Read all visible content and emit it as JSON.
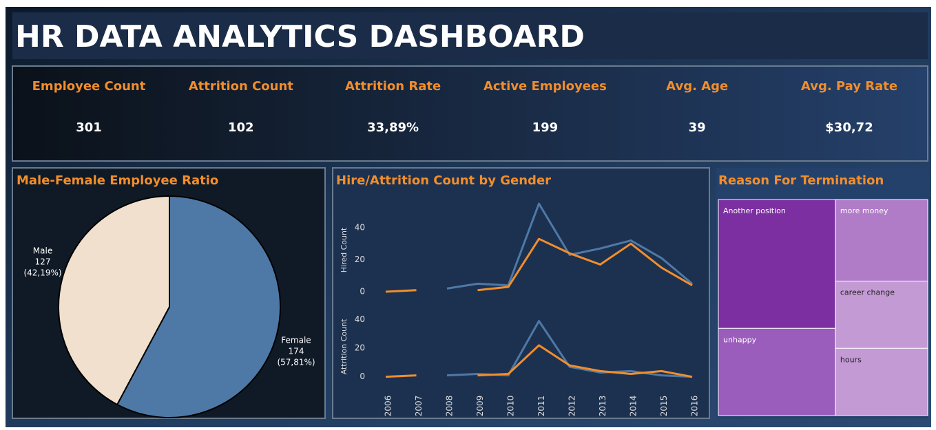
{
  "header": {
    "title": "HR DATA ANALYTICS DASHBOARD"
  },
  "kpis": [
    {
      "label": "Employee Count",
      "value": "301"
    },
    {
      "label": "Attrition Count",
      "value": "102"
    },
    {
      "label": "Attrition Rate",
      "value": "33,89%"
    },
    {
      "label": "Active Employees",
      "value": "199"
    },
    {
      "label": "Avg. Age",
      "value": "39"
    },
    {
      "label": "Avg. Pay Rate",
      "value": "$30,72"
    }
  ],
  "chart_data": [
    {
      "type": "pie",
      "title": "Male-Female Employee Ratio",
      "categories": [
        "Male",
        "Female"
      ],
      "values": [
        127,
        174
      ],
      "percent_labels": [
        "(42,19%)",
        "(57,81%)"
      ],
      "colors": [
        "#f2e0cf",
        "#4e79a7"
      ]
    },
    {
      "type": "line",
      "title": "Hire/Attrition Count by Gender",
      "categories": [
        "2006",
        "2007",
        "2008",
        "2009",
        "2010",
        "2011",
        "2012",
        "2013",
        "2014",
        "2015",
        "2016"
      ],
      "panels": [
        {
          "ylabel": "Hired Count",
          "ylim": [
            -6,
            58
          ],
          "yticks": [
            0,
            20,
            40
          ],
          "series": [
            {
              "color": "#4e79a7",
              "values": [
                null,
                null,
                2,
                5,
                4,
                55,
                23,
                27,
                32,
                21,
                5
              ]
            },
            {
              "color": "#f28e2b",
              "values": [
                0,
                1,
                null,
                1,
                3,
                33,
                24,
                17,
                30,
                15,
                4
              ]
            }
          ]
        },
        {
          "ylabel": "Attrition Count",
          "ylim": [
            -4,
            46
          ],
          "yticks": [
            0,
            20,
            40
          ],
          "series": [
            {
              "color": "#4e79a7",
              "values": [
                null,
                null,
                1,
                2,
                1,
                39,
                7,
                3,
                4,
                1,
                0
              ]
            },
            {
              "color": "#f28e2b",
              "values": [
                0,
                1,
                null,
                1,
                2,
                22,
                8,
                4,
                2,
                4,
                0
              ]
            }
          ]
        }
      ]
    },
    {
      "type": "treemap",
      "title": "Reason For Termination",
      "categories": [
        "Another position",
        "unhappy",
        "more money",
        "career change",
        "hours"
      ],
      "values": [
        34,
        23,
        17,
        14,
        14
      ],
      "colors": [
        "#7b2fa0",
        "#9a5dbb",
        "#b07cc8",
        "#c39ad4",
        "#c39ad4"
      ]
    }
  ]
}
